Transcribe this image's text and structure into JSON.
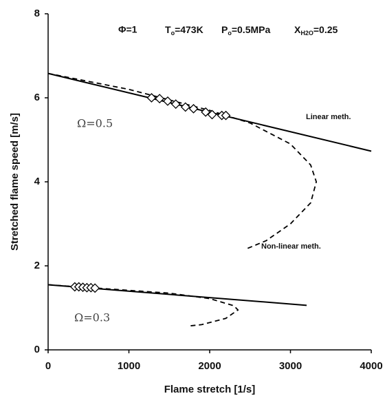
{
  "chart_data": {
    "type": "line",
    "x_label": "Flame stretch [1/s]",
    "y_label": "Stretched flame speed [m/s]",
    "annotations": {
      "phi": "Φ=1",
      "conditions": [
        {
          "base": "T",
          "sub": "o",
          "rest": "=473K"
        },
        {
          "base": "P",
          "sub": "o",
          "rest": "=0.5MPa"
        },
        {
          "base": "X",
          "sub": "H2O",
          "rest": "=0.25"
        }
      ],
      "omega_high": "Ω=0.5",
      "omega_low": "Ω=0.3",
      "linear": "Linear meth.",
      "nonlinear": "Non-linear meth."
    },
    "xlim": [
      0,
      4000
    ],
    "ylim": [
      0,
      8
    ],
    "xticks": [
      0,
      1000,
      2000,
      3000,
      4000
    ],
    "yticks": [
      0,
      2,
      4,
      6,
      8
    ],
    "series": [
      {
        "style": "solid",
        "color": "#000000",
        "x": [
          0,
          4000
        ],
        "values": [
          6.58,
          4.73
        ]
      },
      {
        "style": "dashed",
        "color": "#000000",
        "x": [
          0,
          1000,
          2000,
          2500,
          3000,
          3250,
          3320,
          3250,
          3000,
          2700,
          2450
        ],
        "values": [
          6.58,
          6.2,
          5.7,
          5.4,
          4.9,
          4.4,
          4.0,
          3.5,
          3.0,
          2.6,
          2.4
        ]
      },
      {
        "style": "markers",
        "color": "#000000",
        "x": [
          1280,
          1380,
          1480,
          1580,
          1700,
          1800,
          1950,
          2030,
          2150,
          2200
        ],
        "values": [
          6.0,
          5.98,
          5.92,
          5.85,
          5.78,
          5.74,
          5.66,
          5.6,
          5.58,
          5.58
        ]
      },
      {
        "style": "solid",
        "color": "#000000",
        "x": [
          0,
          3200
        ],
        "values": [
          1.55,
          1.06
        ]
      },
      {
        "style": "dashed",
        "color": "#000000",
        "x": [
          0,
          1500,
          2000,
          2300,
          2350,
          2200,
          1900,
          1750
        ],
        "values": [
          1.55,
          1.35,
          1.22,
          1.05,
          0.95,
          0.75,
          0.6,
          0.57
        ]
      },
      {
        "style": "markers",
        "color": "#000000",
        "x": [
          330,
          380,
          430,
          480,
          530,
          580
        ],
        "values": [
          1.5,
          1.5,
          1.49,
          1.48,
          1.48,
          1.47
        ]
      }
    ]
  }
}
